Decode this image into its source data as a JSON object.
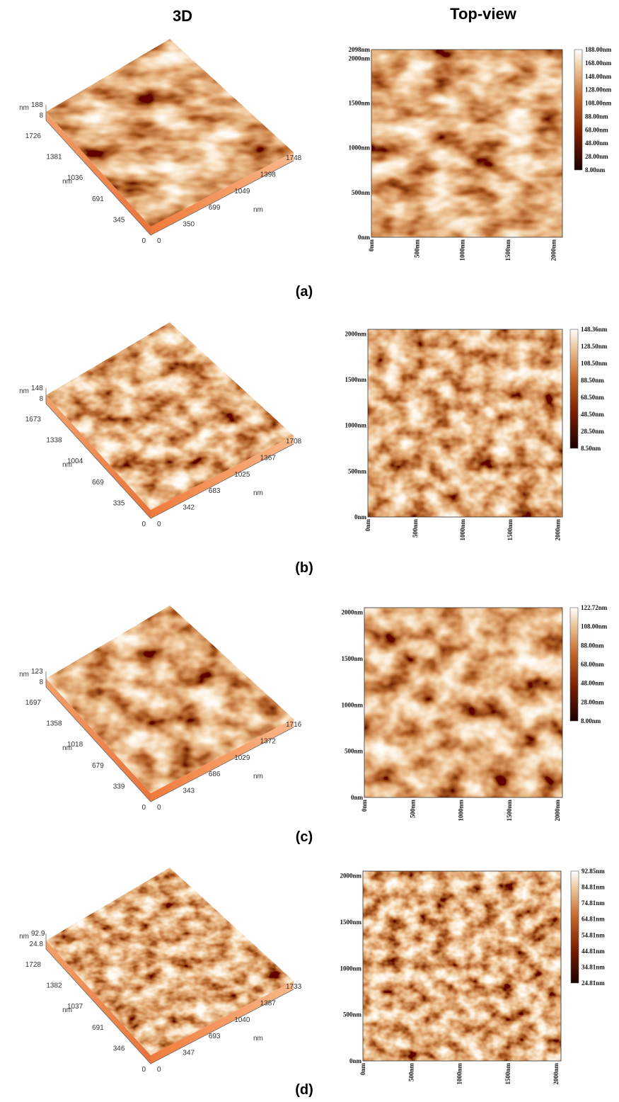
{
  "header": {
    "left": "3D",
    "right": "Top-view"
  },
  "panels": [
    {
      "label": "(a)",
      "surface3d": {
        "z_unit": "nm",
        "z_max": "188",
        "z_min": "8",
        "y_ticks": [
          "1726",
          "1381",
          "1036",
          "691",
          "345",
          "0"
        ],
        "y_unit": "nm",
        "x_ticks": [
          "0",
          "350",
          "699",
          "1049",
          "1398",
          "1748"
        ],
        "x_unit": "nm"
      },
      "top_view": {
        "y_ticks": [
          "2098nm",
          "2000nm",
          "1500nm",
          "1000nm",
          "500nm",
          "0nm"
        ],
        "x_ticks": [
          "0nm",
          "500nm",
          "1000nm",
          "1500nm",
          "2000nm"
        ],
        "colorbar": [
          "188.00nm",
          "168.00nm",
          "148.00nm",
          "128.00nm",
          "108.00nm",
          "88.00nm",
          "68.00nm",
          "48.00nm",
          "28.00nm",
          "8.00nm"
        ]
      }
    },
    {
      "label": "(b)",
      "surface3d": {
        "z_unit": "nm",
        "z_max": "148",
        "z_min": "8",
        "y_ticks": [
          "1673",
          "1338",
          "1004",
          "669",
          "335",
          "0"
        ],
        "y_unit": "nm",
        "x_ticks": [
          "0",
          "342",
          "683",
          "1025",
          "1367",
          "1708"
        ],
        "x_unit": "nm"
      },
      "top_view": {
        "y_ticks": [
          "2000nm",
          "1500nm",
          "1000nm",
          "500nm",
          "0nm"
        ],
        "x_ticks": [
          "0nm",
          "500nm",
          "1000nm",
          "1500nm",
          "2000nm"
        ],
        "colorbar": [
          "148.36nm",
          "128.50nm",
          "108.50nm",
          "88.50nm",
          "68.50nm",
          "48.50nm",
          "28.50nm",
          "8.50nm"
        ]
      }
    },
    {
      "label": "(c)",
      "surface3d": {
        "z_unit": "nm",
        "z_max": "123",
        "z_min": "8",
        "y_ticks": [
          "1697",
          "1358",
          "1018",
          "679",
          "339",
          "0"
        ],
        "y_unit": "nm",
        "x_ticks": [
          "0",
          "343",
          "686",
          "1029",
          "1372",
          "1716"
        ],
        "x_unit": "nm"
      },
      "top_view": {
        "y_ticks": [
          "2000nm",
          "1500nm",
          "1000nm",
          "500nm",
          "0nm"
        ],
        "x_ticks": [
          "0nm",
          "500nm",
          "1000nm",
          "1500nm",
          "2000nm"
        ],
        "colorbar": [
          "122.72nm",
          "108.00nm",
          "88.00nm",
          "68.00nm",
          "48.00nm",
          "28.00nm",
          "8.00nm"
        ]
      }
    },
    {
      "label": "(d)",
      "surface3d": {
        "z_unit": "nm",
        "z_max": "92.9",
        "z_min": "24.8",
        "y_ticks": [
          "1728",
          "1382",
          "1037",
          "691",
          "346",
          "0"
        ],
        "y_unit": "nm",
        "x_ticks": [
          "0",
          "347",
          "693",
          "1040",
          "1387",
          "1733"
        ],
        "x_unit": "nm"
      },
      "top_view": {
        "y_ticks": [
          "2000nm",
          "1500nm",
          "1000nm",
          "500nm",
          "0nm"
        ],
        "x_ticks": [
          "0nm",
          "500nm",
          "1000nm",
          "1500nm",
          "2000nm"
        ],
        "colorbar": [
          "92.85nm",
          "84.81nm",
          "74.81nm",
          "64.81nm",
          "54.81nm",
          "44.81nm",
          "34.81nm",
          "24.81nm"
        ]
      }
    }
  ]
}
